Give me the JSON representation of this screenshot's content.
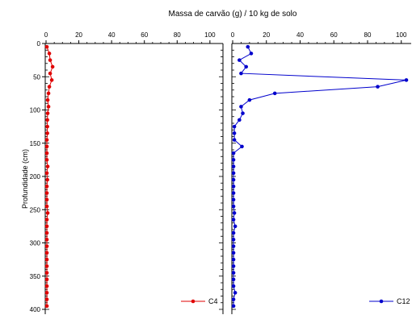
{
  "chart_data": {
    "type": "line",
    "title": "Massa de carvão (g) / 10 kg de solo",
    "ylabel": "Profundidade (cm)",
    "ylim": [
      0,
      400
    ],
    "y_inverted": true,
    "y_ticks": [
      "0",
      "50",
      "100",
      "150",
      "200",
      "250",
      "300",
      "350",
      "400"
    ],
    "panels": [
      {
        "xlim": [
          0,
          105
        ],
        "x_ticks": [
          "0",
          "20",
          "40",
          "60",
          "80",
          "100"
        ],
        "series": [
          {
            "name": "C4",
            "color": "#e00000",
            "depth": [
              5,
              15,
              25,
              35,
              45,
              55,
              65,
              75,
              85,
              95,
              105,
              115,
              125,
              135,
              145,
              155,
              165,
              175,
              185,
              195,
              205,
              215,
              225,
              235,
              245,
              255,
              265,
              275,
              285,
              295,
              305,
              315,
              325,
              335,
              345,
              355,
              365,
              375,
              385,
              395
            ],
            "values": [
              0.5,
              2.0,
              2.5,
              4.0,
              2.5,
              3.5,
              2.0,
              1.5,
              1.0,
              1.5,
              1.0,
              0.8,
              0.8,
              0.8,
              0.5,
              0.5,
              0.5,
              0.5,
              1.0,
              0.5,
              0.8,
              0.5,
              0.5,
              0.5,
              0.5,
              1.0,
              0.5,
              0.5,
              0.5,
              0.5,
              0.5,
              0.5,
              0.5,
              0.5,
              0.5,
              0.5,
              0.5,
              0.5,
              0.5,
              0.5
            ]
          }
        ]
      },
      {
        "xlim": [
          0,
          103
        ],
        "x_ticks": [
          "0",
          "20",
          "40",
          "60",
          "80",
          "100"
        ],
        "series": [
          {
            "name": "C12",
            "color": "#0000cc",
            "depth": [
              5,
              15,
              25,
              35,
              45,
              55,
              65,
              75,
              85,
              95,
              105,
              115,
              125,
              135,
              145,
              155,
              165,
              175,
              185,
              195,
              205,
              215,
              225,
              235,
              245,
              255,
              265,
              275,
              285,
              295,
              305,
              315,
              325,
              335,
              345,
              355,
              365,
              375,
              385,
              395
            ],
            "values": [
              9.0,
              11.0,
              4.0,
              8.0,
              5.0,
              103.0,
              86.0,
              25.0,
              10.0,
              5.0,
              6.0,
              4.0,
              1.0,
              1.0,
              1.0,
              5.5,
              0.5,
              0.5,
              0.5,
              0.5,
              0.5,
              0.5,
              0.5,
              0.5,
              0.5,
              1.0,
              0.5,
              1.5,
              0.5,
              0.5,
              0.5,
              0.5,
              0.5,
              0.5,
              0.5,
              0.5,
              0.5,
              1.5,
              0.5,
              0.5
            ]
          }
        ]
      }
    ],
    "legend": "bottom-right"
  }
}
